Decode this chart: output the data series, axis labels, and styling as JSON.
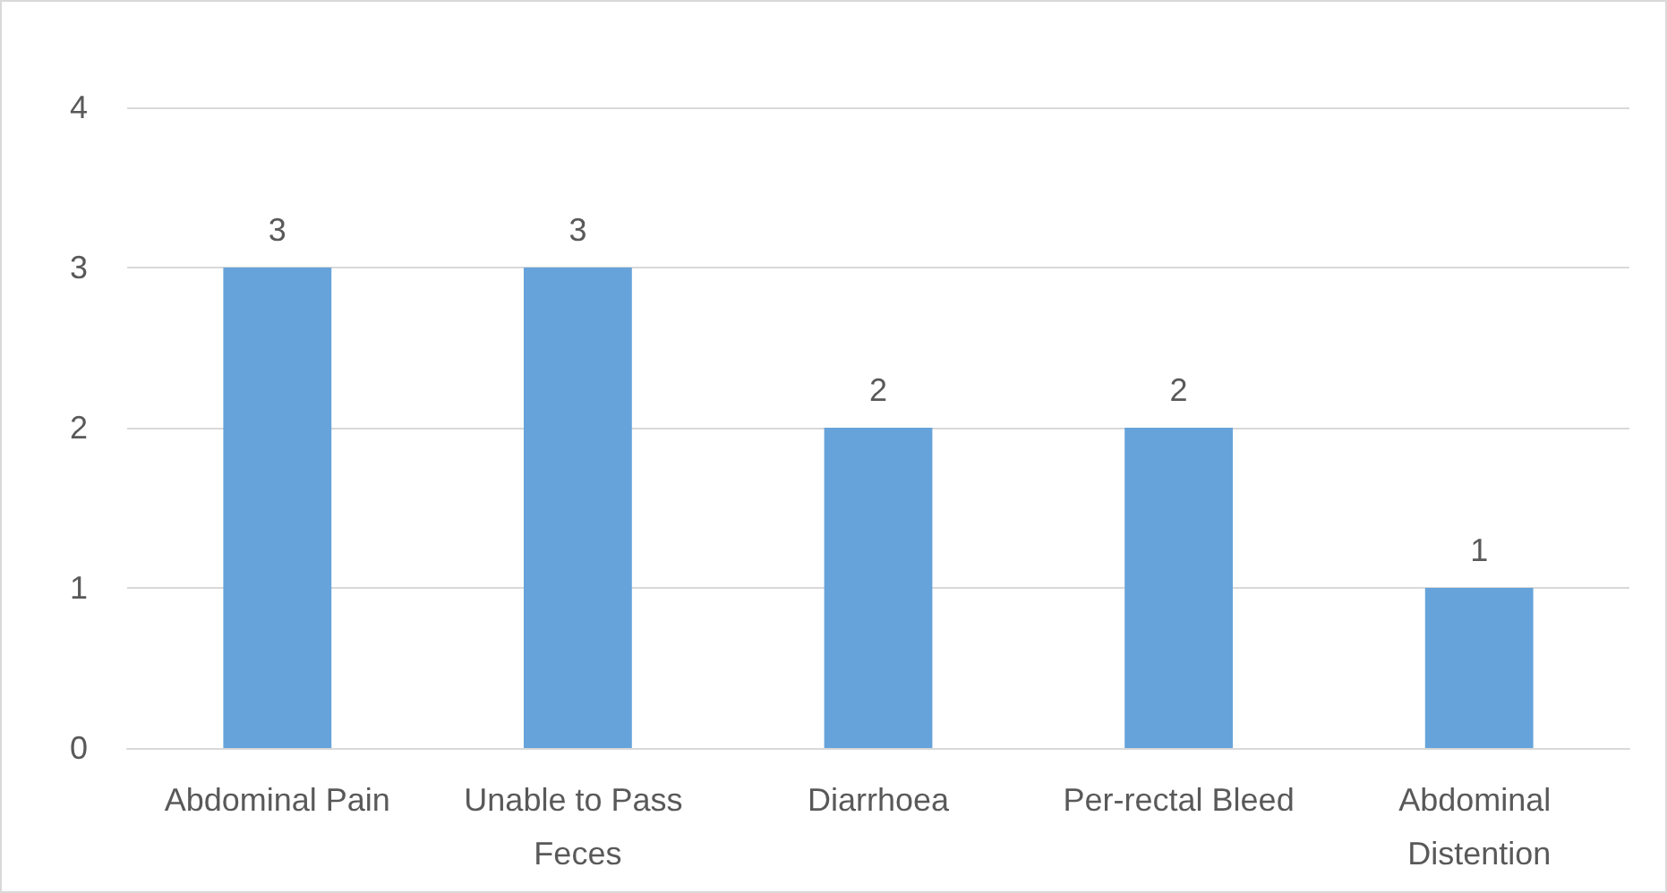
{
  "chart_data": {
    "type": "bar",
    "categories": [
      "Abdominal Pain",
      "Unable to Pass Feces",
      "Diarrhoea",
      "Per-rectal Bleed",
      "Abdominal Distention"
    ],
    "values": [
      3,
      3,
      2,
      2,
      1
    ],
    "color": "#66a3da",
    "ylim": [
      0,
      4
    ],
    "yticks": [
      0,
      1,
      2,
      3,
      4
    ],
    "grid": "y",
    "data_labels": true
  }
}
